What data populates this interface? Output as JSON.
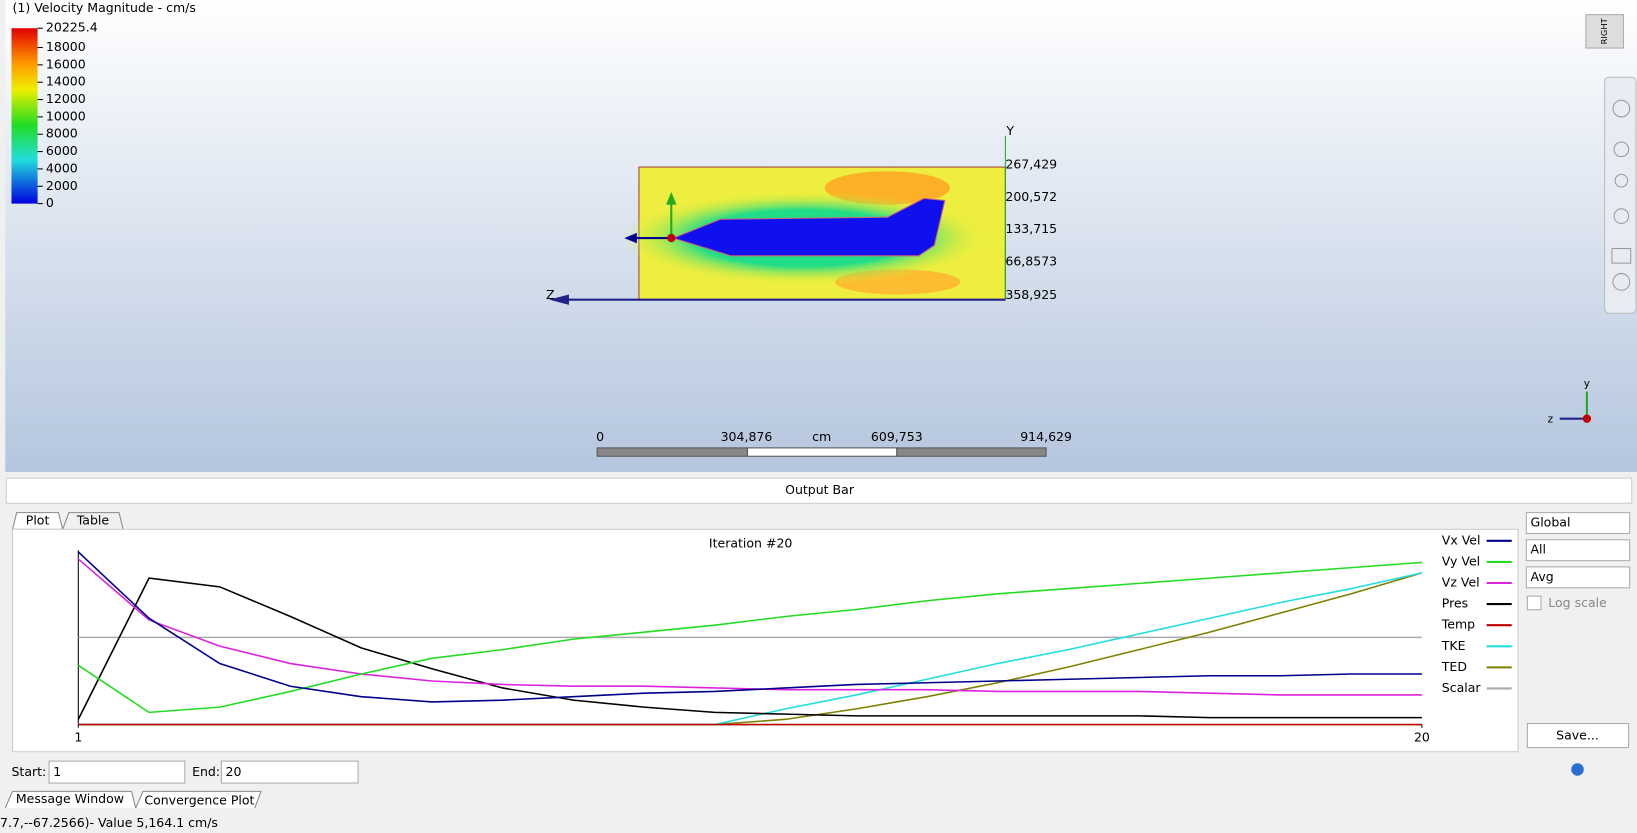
{
  "viewport": {
    "title": "(1) Velocity Magnitude - cm/s",
    "view_cube": "RIGHT",
    "legend": {
      "ylim": [
        0,
        20225.4
      ],
      "ticks": [
        20225.4,
        18000,
        16000,
        14000,
        12000,
        10000,
        8000,
        6000,
        4000,
        2000,
        0
      ]
    },
    "axis_labels": [
      "267,429",
      "200,572",
      "133,715",
      "66,8573",
      "358,925"
    ],
    "axis_y": "Y",
    "axis_z": "Z",
    "scale_bar": [
      "0",
      "304,876",
      "cm",
      "609,753",
      "914,629"
    ],
    "triad": [
      "y",
      "z"
    ]
  },
  "output_bar": "Output Bar",
  "tabs": [
    "Plot",
    "Table"
  ],
  "plot": {
    "title": "Iteration #20",
    "xlim": [
      1,
      20
    ],
    "ylim": [
      0,
      100
    ],
    "xticks": [
      1,
      20
    ],
    "x": [
      1,
      2,
      3,
      4,
      5,
      6,
      7,
      8,
      9,
      10,
      11,
      12,
      13,
      14,
      15,
      16,
      17,
      18,
      19,
      20
    ],
    "series": [
      {
        "name": "Vx Vel",
        "color": "#00008b",
        "values": [
          99,
          61,
          35,
          22,
          16,
          13,
          14,
          16,
          18,
          19,
          21,
          23,
          24,
          25,
          26,
          27,
          28,
          28,
          29,
          29
        ]
      },
      {
        "name": "Vy Vel",
        "color": "#22dd22",
        "values": [
          34,
          7,
          10,
          19,
          29,
          38,
          43,
          49,
          53,
          57,
          62,
          66,
          71,
          75,
          78,
          81,
          84,
          87,
          90,
          93
        ]
      },
      {
        "name": "Vz Vel",
        "color": "#dd22dd",
        "values": [
          95,
          60,
          45,
          35,
          29,
          25,
          23,
          22,
          22,
          21,
          20,
          20,
          20,
          19,
          19,
          19,
          18,
          17,
          17,
          17
        ]
      },
      {
        "name": "Pres",
        "color": "#000000",
        "values": [
          3,
          84,
          79,
          62,
          44,
          32,
          21,
          14,
          10,
          7,
          6,
          5,
          5,
          5,
          5,
          5,
          4,
          4,
          4,
          4
        ]
      },
      {
        "name": "Temp",
        "color": "#c00000",
        "values": [
          0,
          0,
          0,
          0,
          0,
          0,
          0,
          0,
          0,
          0,
          0,
          0,
          0,
          0,
          0,
          0,
          0,
          0,
          0,
          0
        ]
      },
      {
        "name": "TKE",
        "color": "#22dddd",
        "values": [
          0,
          0,
          0,
          0,
          0,
          0,
          0,
          0,
          0,
          0,
          9,
          17,
          26,
          35,
          43,
          52,
          61,
          70,
          78,
          87
        ]
      },
      {
        "name": "TED",
        "color": "#808000",
        "values": [
          0,
          0,
          0,
          0,
          0,
          0,
          0,
          0,
          0,
          0,
          3,
          9,
          16,
          24,
          33,
          43,
          53,
          64,
          75,
          87
        ]
      },
      {
        "name": "Scalar",
        "color": "#aaaaaa",
        "values": [
          50,
          50,
          50,
          50,
          50,
          50,
          50,
          50,
          50,
          50,
          50,
          50,
          50,
          50,
          50,
          50,
          50,
          50,
          50,
          50
        ]
      }
    ]
  },
  "controls": {
    "dropdowns": [
      "Global",
      "All",
      "Avg"
    ],
    "log_scale": "Log scale",
    "save": "Save...",
    "start_label": "Start:",
    "start": "1",
    "end_label": "End:",
    "end": "20"
  },
  "bottom_tabs": [
    "Message Window",
    "Convergence Plot"
  ],
  "status": "7.7,--67.2566)- Value  5,164.1  cm/s"
}
